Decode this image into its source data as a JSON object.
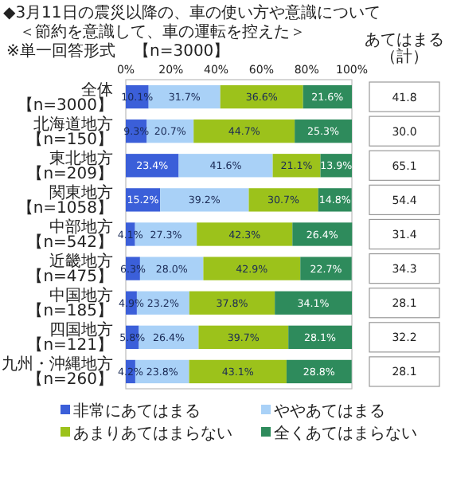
{
  "chart_data": {
    "type": "bar",
    "orientation": "horizontal",
    "stacked": true,
    "title": "◆3月11日の震災以降の、車の使い方や意識について",
    "subtitle": "＜節約を意識して、車の運転を控えた＞",
    "annotations": [
      "※単一回答形式",
      "【n=3000】",
      "あてはまる（計）",
      "41.8",
      "30.0",
      "65.1",
      "54.4",
      "31.4",
      "34.3",
      "28.1",
      "32.2",
      "28.1"
    ],
    "categories": [
      "全体【n=3000】",
      "北海道地方【n=150】",
      "東北地方【n=209】",
      "関東地方【n=1058】",
      "中部地方【n=542】",
      "近畿地方【n=475】",
      "中国地方【n=185】",
      "四国地方【n=121】",
      "九州・沖縄地方【n=260】"
    ],
    "xlim": [
      0,
      100
    ],
    "xticks": [
      {
        "value": 0,
        "label": "0%"
      },
      {
        "value": 20,
        "label": "20%"
      },
      {
        "value": 40,
        "label": "40%"
      },
      {
        "value": 60,
        "label": "60%"
      },
      {
        "value": 80,
        "label": "80%"
      },
      {
        "value": 100,
        "label": "100%"
      }
    ],
    "series": [
      {
        "name": "非常にあてはまる",
        "color": "#3b5fd9",
        "values": [
          10.1,
          9.3,
          23.4,
          15.2,
          4.1,
          6.3,
          4.9,
          5.8,
          4.2
        ],
        "value_labels": [
          "10.1%",
          "9.3%",
          "23.4%",
          "15.2%",
          "4.1%",
          "6.3%",
          "4.9%",
          "5.8%",
          "4.2%"
        ]
      },
      {
        "name": "ややあてはまる",
        "color": "#a9d1f7",
        "values": [
          31.7,
          20.7,
          41.6,
          39.2,
          27.3,
          28.0,
          23.2,
          26.4,
          23.8
        ],
        "value_labels": [
          "31.7%",
          "20.7%",
          "41.6%",
          "39.2%",
          "27.3%",
          "28.0%",
          "23.2%",
          "26.4%",
          "23.8%"
        ]
      },
      {
        "name": "あまりあてはまらない",
        "color": "#9cc21b",
        "values": [
          36.6,
          44.7,
          21.1,
          30.7,
          42.3,
          42.9,
          37.8,
          39.7,
          43.1
        ],
        "value_labels": [
          "36.6%",
          "44.7%",
          "21.1%",
          "30.7%",
          "42.3%",
          "42.9%",
          "37.8%",
          "39.7%",
          "43.1%"
        ]
      },
      {
        "name": "全くあてはまらない",
        "color": "#2e8b5c",
        "values": [
          21.6,
          25.3,
          13.9,
          14.8,
          26.4,
          22.7,
          34.1,
          28.1,
          28.8
        ],
        "value_labels": [
          "21.6%",
          "25.3%",
          "13.9%",
          "14.8%",
          "26.4%",
          "22.7%",
          "34.1%",
          "28.1%",
          "28.8%"
        ]
      }
    ],
    "legend": "bottom"
  }
}
